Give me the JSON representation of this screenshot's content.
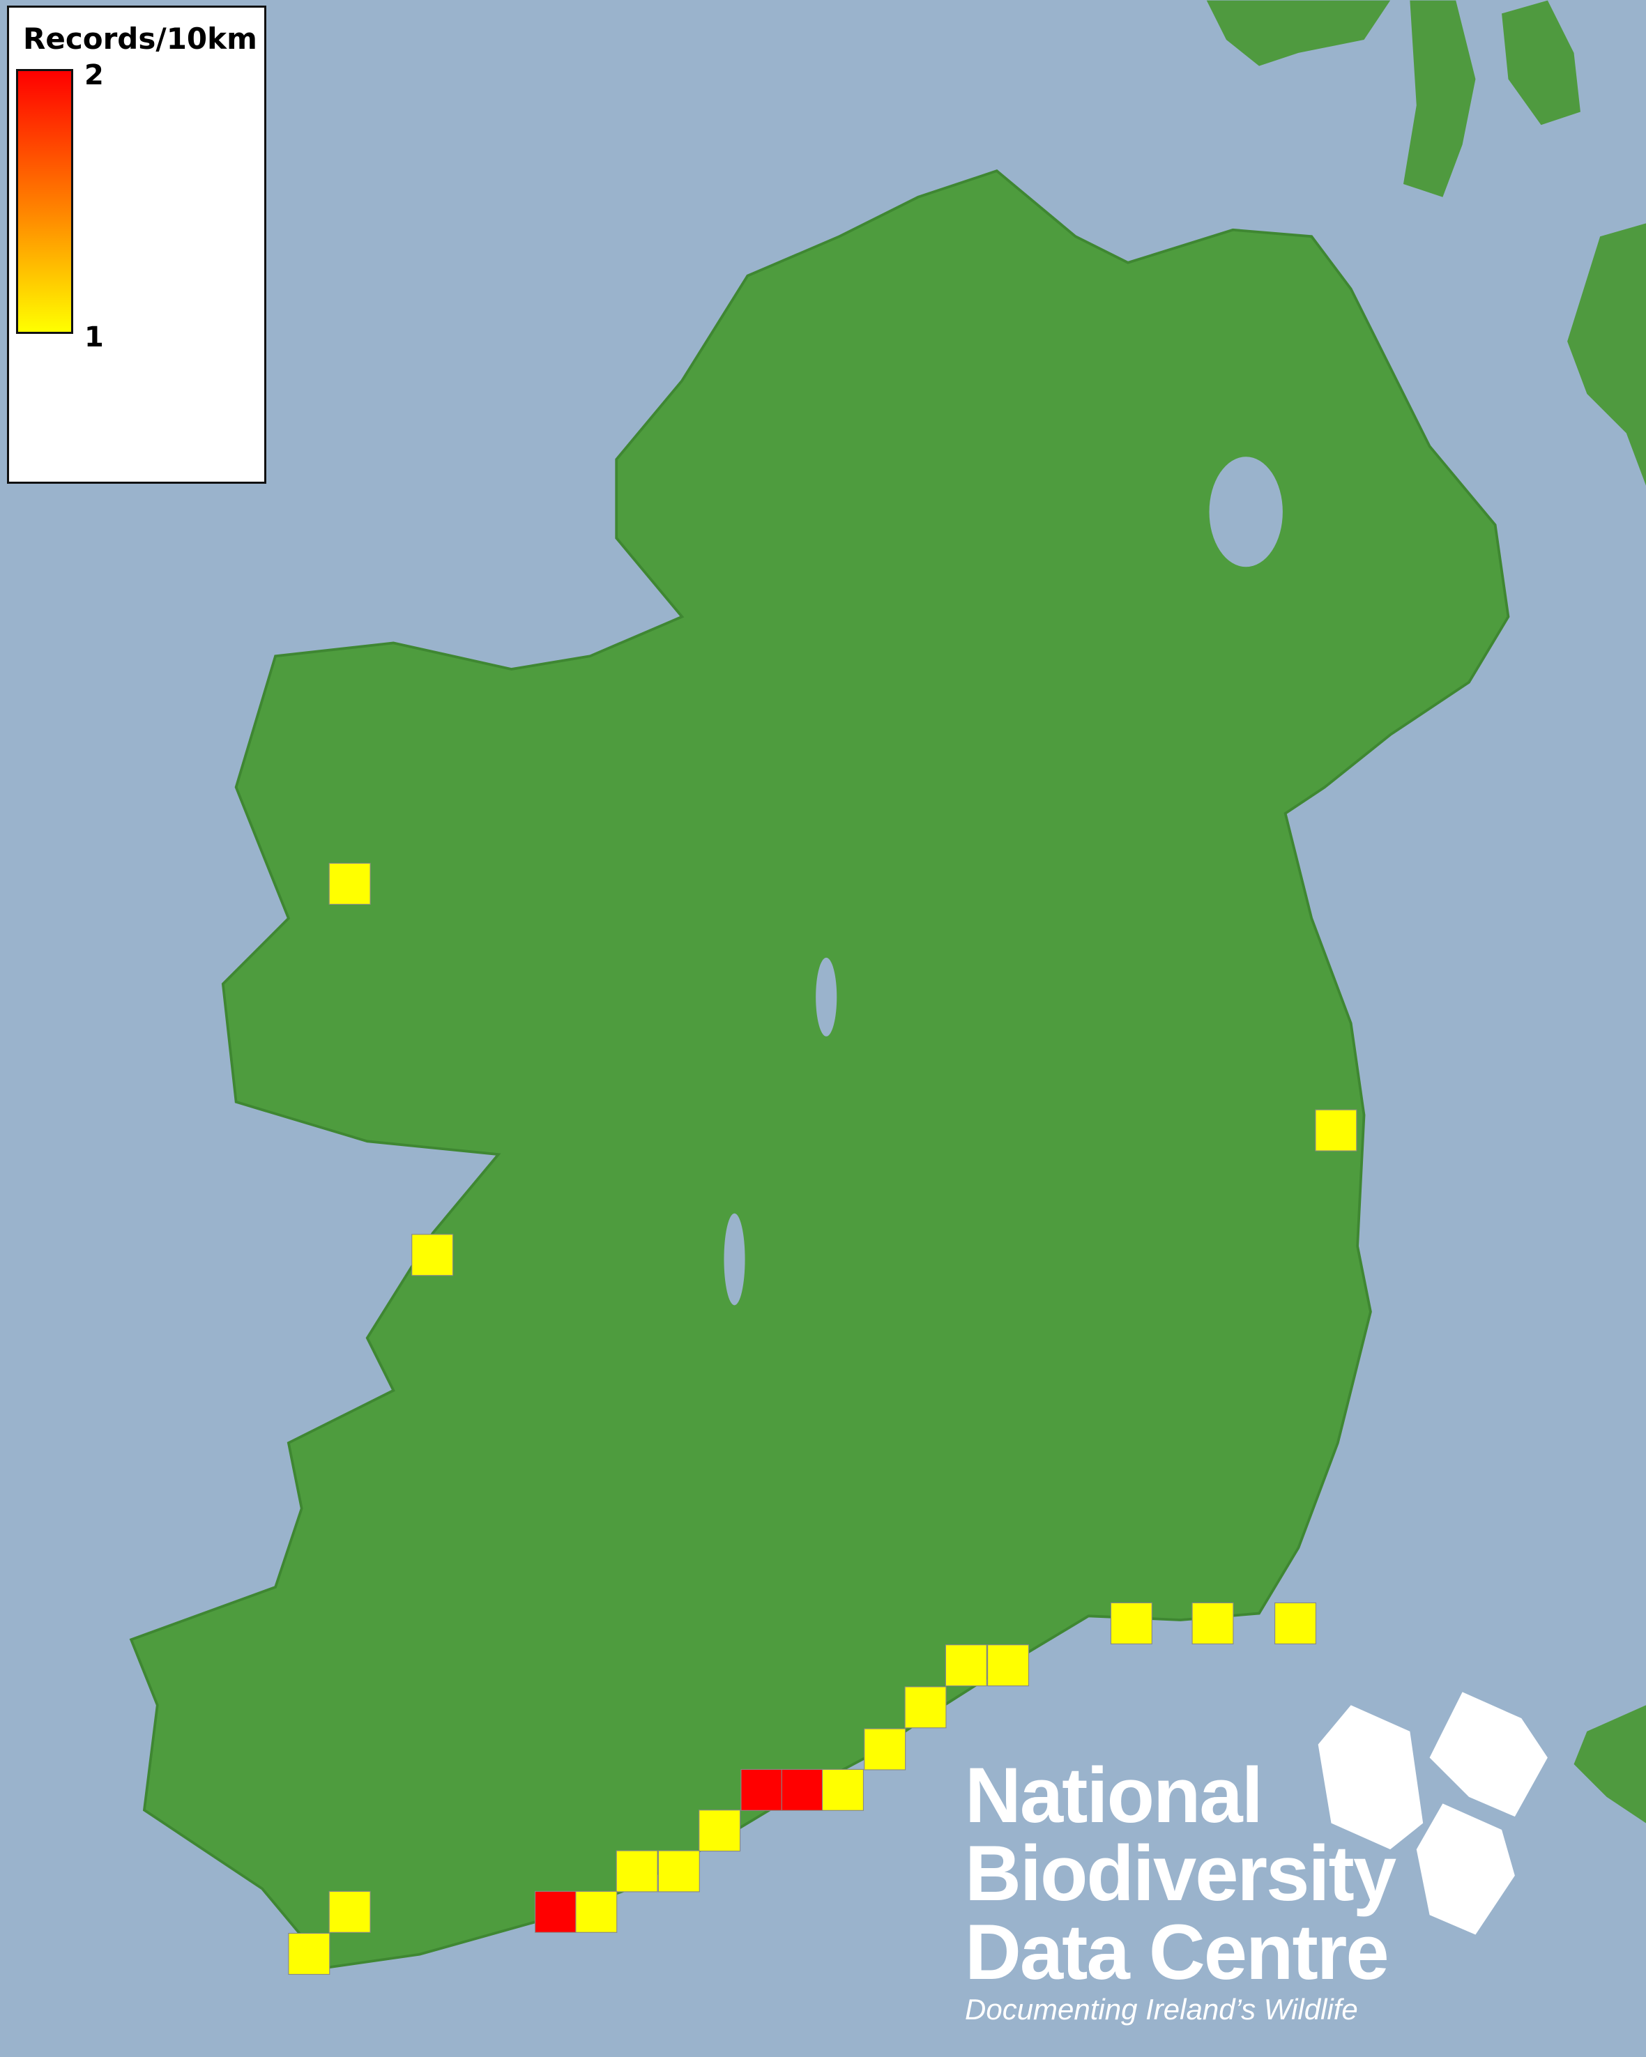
{
  "legend": {
    "title": "Records/10km",
    "max_label": "2",
    "min_label": "1",
    "color_max": "#ff0000",
    "color_min": "#ffff00"
  },
  "colors": {
    "sea": "#9ab3cc",
    "land": "#4a9a3c",
    "cell_low": "#ffff00",
    "cell_high": "#ff0000"
  },
  "cells": [
    1,
    1,
    1,
    1,
    1,
    1,
    1,
    1,
    1,
    1,
    2,
    2,
    1,
    1,
    1,
    1,
    2,
    1,
    1,
    1
  ],
  "logo": {
    "line1": "National",
    "line2": "Biodiversity",
    "line3": "Data Centre",
    "tagline": "Documenting Ireland’s Wildlife",
    "icons": [
      "tree-icon",
      "butterfly-icon",
      "seahorse-icon"
    ]
  }
}
